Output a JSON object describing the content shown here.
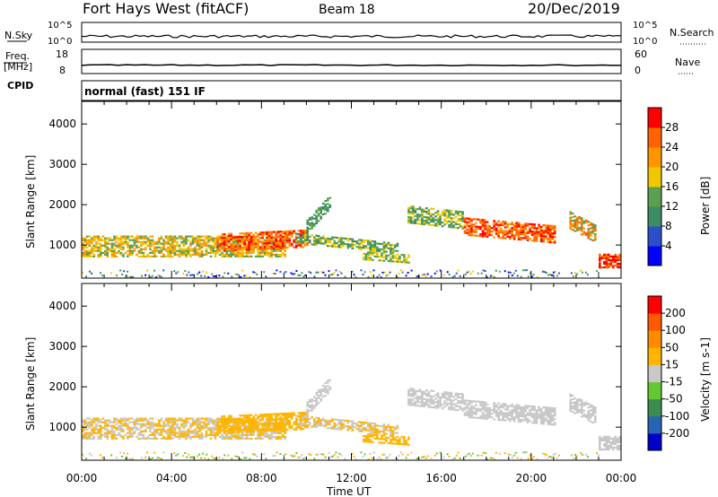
{
  "header": {
    "station": "Fort Hays West (fitACF)",
    "beam": "Beam 18",
    "date": "20/Dec/2019"
  },
  "noise_panel": {
    "left_label": "N.Sky",
    "right_label": "N.Search",
    "left_ticks": [
      "10^5",
      "10^0"
    ],
    "right_ticks": [
      "10^5",
      "10^0"
    ]
  },
  "freq_panel": {
    "left_label_top": "Freq.",
    "left_label_bottom": "[MHz]",
    "right_label": "Nave",
    "left_ticks": [
      "18",
      "8"
    ],
    "right_ticks": [
      "60",
      "0"
    ]
  },
  "cpid": {
    "label": "CPID",
    "mode": "normal (fast) 151 IF"
  },
  "colors": {
    "power_scale": [
      "#0000ff",
      "#2b4fc8",
      "#3c8c64",
      "#5aa050",
      "#f0c800",
      "#ff9600",
      "#ff6400",
      "#ff0000"
    ],
    "velocity_scale": [
      "#ff0000",
      "#ff5a00",
      "#ff8c00",
      "#ffb400",
      "#c8c8c8",
      "#64c832",
      "#3c8c50",
      "#2864b4",
      "#0000c8"
    ]
  },
  "chart_data": [
    {
      "type": "heatmap",
      "title": "Power",
      "ylabel": "Slant Range [km]",
      "xlabel": "",
      "y_ticks": [
        1000,
        2000,
        3000,
        4000
      ],
      "x_ticks": [
        "00:00",
        "04:00",
        "08:00",
        "12:00",
        "16:00",
        "20:00",
        "00:00"
      ],
      "colorbar_label": "Power [dB]",
      "colorbar_ticks": [
        4,
        8,
        12,
        16,
        20,
        24,
        28
      ],
      "ylim": [
        180,
        4560
      ],
      "xlim_hours": [
        0,
        24
      ]
    },
    {
      "type": "heatmap",
      "title": "Velocity",
      "ylabel": "Slant Range [km]",
      "xlabel": "Time UT",
      "y_ticks": [
        1000,
        2000,
        3000,
        4000
      ],
      "x_ticks": [
        "00:00",
        "04:00",
        "08:00",
        "12:00",
        "16:00",
        "20:00",
        "00:00"
      ],
      "colorbar_label": "Velocity [m s-1]",
      "colorbar_ticks": [
        200,
        100,
        50,
        15,
        -15,
        -50,
        -100,
        -200
      ],
      "ylim": [
        180,
        4560
      ],
      "xlim_hours": [
        0,
        24
      ]
    }
  ]
}
